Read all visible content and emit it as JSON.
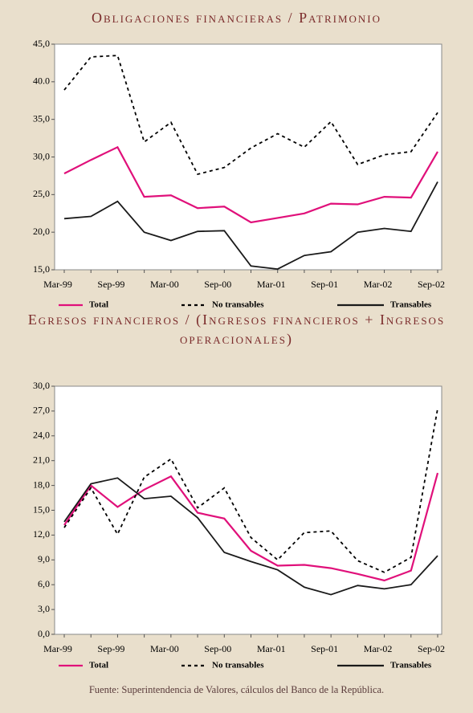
{
  "source": "Fuente: Superintendencia de Valores, cálculos del Banco de la República.",
  "chart_data": [
    {
      "type": "line",
      "title": "Obligaciones financieras / Patrimonio",
      "categories": [
        "Mar-99",
        null,
        "Sep-99",
        null,
        "Mar-00",
        null,
        "Sep-00",
        null,
        "Mar-01",
        null,
        "Sep-01",
        null,
        "Mar-02",
        null,
        "Sep-02"
      ],
      "ylim": [
        15,
        45
      ],
      "yticks": [
        {
          "value": 15,
          "label": "15,0"
        },
        {
          "value": 20,
          "label": "20,0"
        },
        {
          "value": 25,
          "label": "25,0"
        },
        {
          "value": 30,
          "label": "30,0"
        },
        {
          "value": 35,
          "label": "35,0"
        },
        {
          "value": 40,
          "label": "40.0"
        },
        {
          "value": 45,
          "label": "45,0"
        }
      ],
      "series": [
        {
          "name": "Total",
          "color": "#e0107a",
          "style": "solid",
          "values": [
            27.8,
            29.6,
            31.3,
            24.7,
            24.9,
            23.2,
            23.4,
            21.3,
            21.9,
            22.5,
            23.8,
            23.7,
            24.7,
            24.6,
            30.7
          ]
        },
        {
          "name": "No transables",
          "color": "#000000",
          "style": "dashed",
          "values": [
            38.9,
            43.3,
            43.5,
            32.0,
            34.6,
            27.7,
            28.6,
            31.2,
            33.1,
            31.3,
            34.7,
            29.0,
            30.3,
            30.7,
            35.9
          ]
        },
        {
          "name": "Transables",
          "color": "#1a1a1a",
          "style": "solid",
          "values": [
            21.8,
            22.1,
            24.1,
            20.0,
            18.9,
            20.1,
            20.2,
            15.5,
            15.1,
            16.9,
            17.4,
            20.0,
            20.5,
            20.1,
            26.7
          ]
        }
      ]
    },
    {
      "type": "line",
      "title": "Egresos financieros / (Ingresos financieros + Ingresos operacionales)",
      "categories": [
        "Mar-99",
        null,
        "Sep-99",
        null,
        "Mar-00",
        null,
        "Sep-00",
        null,
        "Mar-01",
        null,
        "Sep-01",
        null,
        "Mar-02",
        null,
        "Sep-02"
      ],
      "ylim": [
        0,
        30
      ],
      "yticks": [
        {
          "value": 0,
          "label": "0,0"
        },
        {
          "value": 3,
          "label": "3,0"
        },
        {
          "value": 6,
          "label": "6,0"
        },
        {
          "value": 9,
          "label": "9,0"
        },
        {
          "value": 12,
          "label": "12,0"
        },
        {
          "value": 15,
          "label": "15,0"
        },
        {
          "value": 18,
          "label": "18,0"
        },
        {
          "value": 21,
          "label": "21,0"
        },
        {
          "value": 24,
          "label": "24,0"
        },
        {
          "value": 27,
          "label": "27,0"
        },
        {
          "value": 30,
          "label": "30,0"
        }
      ],
      "series": [
        {
          "name": "Total",
          "color": "#e0107a",
          "style": "solid",
          "values": [
            13.2,
            18.0,
            15.4,
            17.5,
            19.1,
            14.7,
            14.0,
            10.1,
            8.3,
            8.4,
            8.0,
            7.3,
            6.5,
            7.7,
            19.5
          ]
        },
        {
          "name": "No transables",
          "color": "#000000",
          "style": "dashed",
          "values": [
            12.9,
            17.7,
            12.1,
            19.0,
            21.2,
            15.3,
            17.7,
            11.7,
            9.0,
            12.3,
            12.5,
            8.9,
            7.5,
            9.3,
            27.3
          ]
        },
        {
          "name": "Transables",
          "color": "#1a1a1a",
          "style": "solid",
          "values": [
            13.6,
            18.2,
            18.9,
            16.4,
            16.7,
            14.1,
            9.9,
            8.8,
            7.8,
            5.7,
            4.8,
            5.9,
            5.5,
            6.0,
            9.5
          ]
        }
      ]
    }
  ]
}
